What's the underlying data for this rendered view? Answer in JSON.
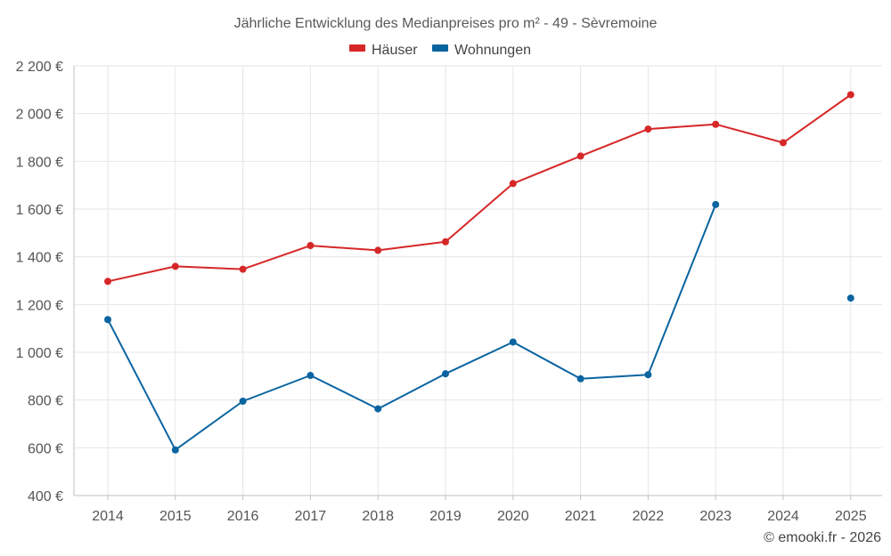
{
  "chart_data": {
    "type": "line",
    "title": "Jährliche Entwicklung des Medianpreises pro m² - 49 - Sèvremoine",
    "xlabel": "",
    "ylabel": "",
    "categories": [
      "2014",
      "2015",
      "2016",
      "2017",
      "2018",
      "2019",
      "2020",
      "2021",
      "2022",
      "2023",
      "2024",
      "2025"
    ],
    "ylim": [
      400,
      2200
    ],
    "yticks": [
      400,
      600,
      800,
      1000,
      1200,
      1400,
      1600,
      1800,
      2000,
      2200
    ],
    "ytick_labels": [
      "400 €",
      "600 €",
      "800 €",
      "1 000 €",
      "1 200 €",
      "1 400 €",
      "1 600 €",
      "1 800 €",
      "2 000 €",
      "2 200 €"
    ],
    "grid": true,
    "legend_position": "top-center",
    "series": [
      {
        "name": "Häuser",
        "color": "#d62728",
        "values": [
          1297,
          1360,
          1348,
          1447,
          1427,
          1463,
          1707,
          1822,
          1935,
          1955,
          1878,
          2079
        ]
      },
      {
        "name": "Wohnungen",
        "color": "#0a64a0",
        "values": [
          1137,
          591,
          795,
          903,
          763,
          910,
          1043,
          889,
          906,
          1619,
          null,
          1227
        ]
      }
    ]
  },
  "credit": "© emooki.fr - 2026"
}
